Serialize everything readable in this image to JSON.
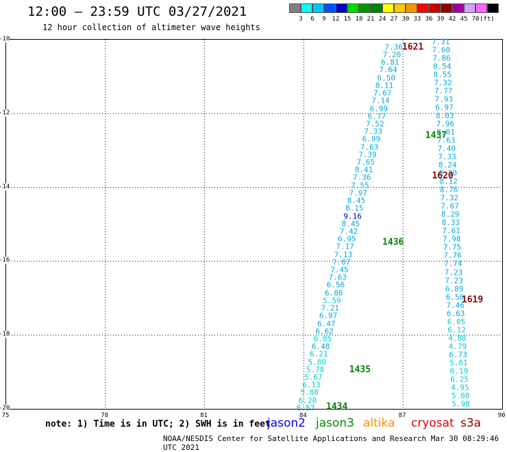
{
  "header": {
    "title": "12:00 – 23:59 UTC 03/27/2021",
    "subtitle": "12 hour collection of altimeter wave heights"
  },
  "legend": {
    "unit": "(ft)",
    "labels": [
      "3",
      "6",
      "9",
      "12",
      "15",
      "18",
      "21",
      "24",
      "27",
      "30",
      "33",
      "36",
      "39",
      "42",
      "45",
      "70"
    ],
    "colors": [
      "#808080",
      "#00ffff",
      "#00c8ff",
      "#0050ff",
      "#0000c8",
      "#00dc00",
      "#009600",
      "#008200",
      "#ffff00",
      "#ffc800",
      "#ff9600",
      "#ff0000",
      "#c80000",
      "#960000",
      "#a000a0",
      "#d2a0ff",
      "#ff64ff",
      "#000000"
    ]
  },
  "axes": {
    "x_ticks": [
      "75",
      "78",
      "81",
      "84",
      "87",
      "90"
    ],
    "y_ticks": [
      "-10",
      "-12",
      "-14",
      "-16",
      "-18",
      "-20"
    ]
  },
  "map": {
    "lon_range": [
      75,
      90
    ],
    "lat_range": [
      -20,
      -10
    ],
    "passes": [
      {
        "label": "1621",
        "lon": 87.3,
        "lat": -10.2,
        "color": "#8b0000"
      },
      {
        "label": "1437",
        "lon": 88.0,
        "lat": -12.6,
        "color": "#008000"
      },
      {
        "label": "1620",
        "lon": 88.2,
        "lat": -13.7,
        "color": "#8b0000"
      },
      {
        "label": "1436",
        "lon": 86.7,
        "lat": -15.5,
        "color": "#008000"
      },
      {
        "label": "1619",
        "lon": 89.1,
        "lat": -17.05,
        "color": "#8b0000"
      },
      {
        "label": "1435",
        "lon": 85.7,
        "lat": -18.95,
        "color": "#008000"
      },
      {
        "label": "1434",
        "lon": 85.0,
        "lat": -19.95,
        "color": "#008000"
      }
    ],
    "tracks": [
      {
        "name": "descending",
        "start": [
          86.72,
          -10.2
        ],
        "end": [
          84.06,
          -19.98
        ],
        "color": "#00aadd",
        "values": [
          "7.36",
          "7.20",
          "6.81",
          "7.64",
          "6.50",
          "8.11",
          "7.67",
          "7.14",
          "6.99",
          "6.77",
          "7.52",
          "7.33",
          "6.99",
          "7.63",
          "7.39",
          "7.65",
          "8.41",
          "7.36",
          "7.55",
          "7.97",
          "8.45",
          "8.15",
          "9.16",
          "8.45",
          "7.42",
          "6.95",
          "7.17",
          "7.13",
          "7.07",
          "7.45",
          "7.63",
          "6.56",
          "6.86",
          "5.59",
          "7.21",
          "6.97",
          "6.47",
          "6.62",
          "6.05",
          "6.48",
          "6.21",
          "5.80",
          "5.78",
          "5.67",
          "6.13",
          "5.80",
          "6.20",
          "6.57"
        ]
      },
      {
        "name": "ascending",
        "start": [
          88.14,
          -10.05
        ],
        "end": [
          88.75,
          -19.87
        ],
        "color": "#00aadd",
        "values": [
          "7.31",
          "7.60",
          "7.86",
          "8.54",
          "8.55",
          "7.32",
          "7.77",
          "7.93",
          "6.97",
          "8.03",
          "7.96",
          "8.01",
          "7.63",
          "7.40",
          "7.33",
          "8.24",
          "8.30",
          "8.12",
          "8.76",
          "7.32",
          "7.67",
          "8.29",
          "8.33",
          "7.61",
          "7.98",
          "7.75",
          "7.76",
          "7.74",
          "7.23",
          "7.23",
          "6.89",
          "6.56",
          "7.46",
          "6.63",
          "6.05",
          "6.12",
          "4.88",
          "4.79",
          "6.73",
          "5.01",
          "6.19",
          "6.25",
          "4.95",
          "5.08",
          "5.98"
        ]
      }
    ]
  },
  "footer": {
    "note": "note:  1) Time is in UTC; 2) SWH is in feet",
    "satellites": [
      {
        "name": "jason2",
        "color": "#0000ee"
      },
      {
        "name": "jason3",
        "color": "#008800"
      },
      {
        "name": "altika",
        "color": "#ff8c00"
      },
      {
        "name": "cryosat",
        "color": "#dd0000"
      },
      {
        "name": "s3a",
        "color": "#8b0000"
      }
    ],
    "credit": "NOAA/NESDIS Center for Satellite Applications and Research    Mar 30 08:29:46 UTC 2021"
  }
}
